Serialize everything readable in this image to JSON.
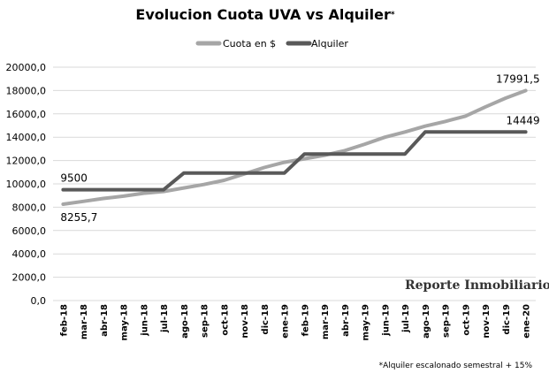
{
  "chart_data": {
    "type": "line",
    "title": "Evolucion Cuota UVA vs Alquiler",
    "title_suffix": "*",
    "categories": [
      "feb-18",
      "mar-18",
      "abr-18",
      "may-18",
      "jun-18",
      "jul-18",
      "ago-18",
      "sep-18",
      "oct-18",
      "nov-18",
      "dic-18",
      "ene-19",
      "feb-19",
      "mar-19",
      "abr-19",
      "may-19",
      "jun-19",
      "jul-19",
      "ago-19",
      "sep-19",
      "oct-19",
      "nov-19",
      "dic-19",
      "ene-20"
    ],
    "series": [
      {
        "name": "Cuota en $",
        "color": "#a6a6a6",
        "values": [
          8255.7,
          8500,
          8750,
          8950,
          9200,
          9350,
          9650,
          9950,
          10300,
          10850,
          11400,
          11850,
          12150,
          12450,
          12850,
          13400,
          14000,
          14450,
          14950,
          15350,
          15800,
          16600,
          17350,
          17991.5
        ]
      },
      {
        "name": "Alquiler",
        "color": "#595959",
        "values": [
          9500,
          9500,
          9500,
          9500,
          9500,
          9500,
          10925,
          10925,
          10925,
          10925,
          10925,
          10925,
          12564,
          12564,
          12564,
          12564,
          12564,
          12564,
          14449,
          14449,
          14449,
          14449,
          14449,
          14449
        ]
      }
    ],
    "ylim": [
      0,
      20000
    ],
    "yticks": [
      "0,0",
      "2000,0",
      "4000,0",
      "6000,0",
      "8000,0",
      "10000,0",
      "12000,0",
      "14000,0",
      "16000,0",
      "18000,0",
      "20000,0"
    ],
    "grid": true,
    "legend_position": "top",
    "data_labels": [
      {
        "series": 0,
        "index": 0,
        "text": "8255,7",
        "placement": "below"
      },
      {
        "series": 0,
        "index": 23,
        "text": "17991,5",
        "placement": "above"
      },
      {
        "series": 1,
        "index": 0,
        "text": "9500",
        "placement": "above"
      },
      {
        "series": 1,
        "index": 23,
        "text": "14449",
        "placement": "above"
      }
    ],
    "watermark": "Reporte Inmobiliario",
    "footnote": "*Alquiler escalonado semestral + 15%"
  }
}
